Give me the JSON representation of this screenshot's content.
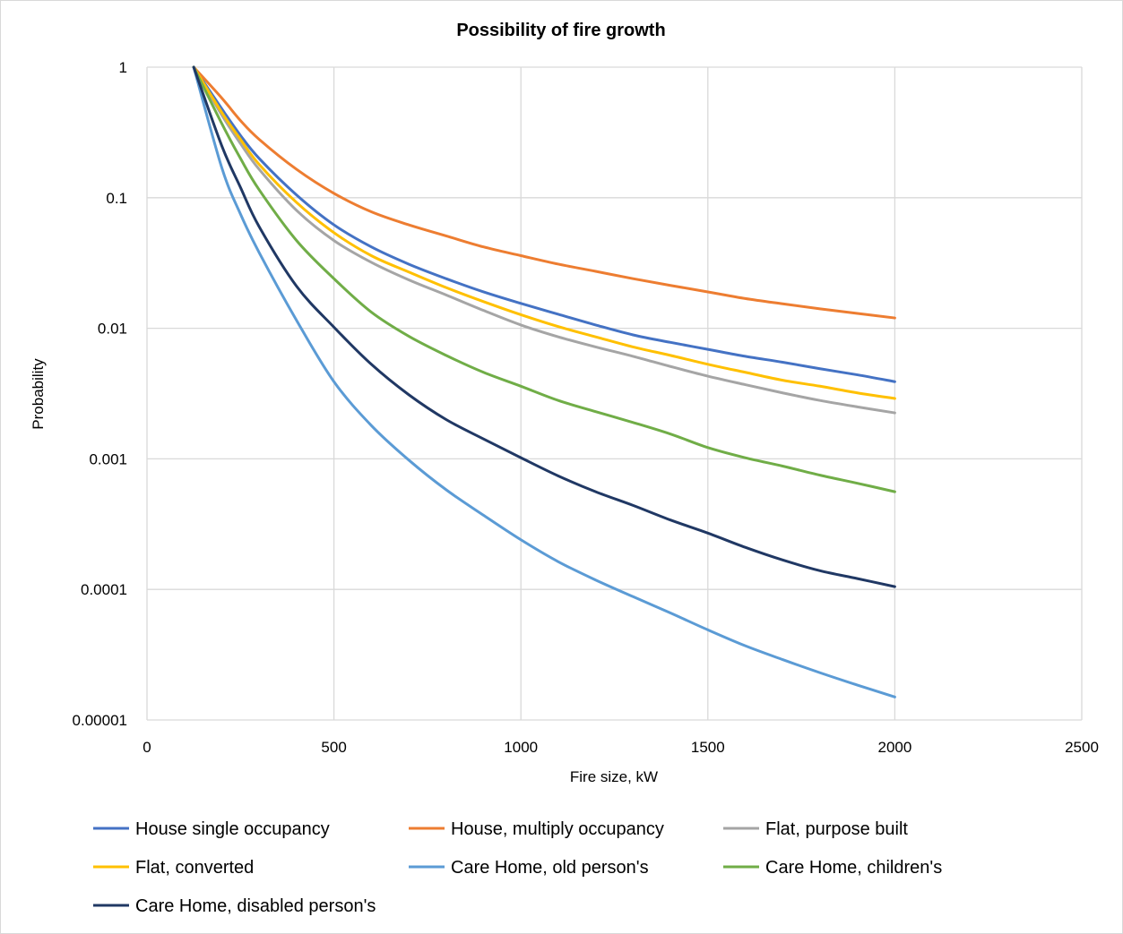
{
  "chart_data": {
    "type": "line",
    "title": "Possibility of fire growth",
    "xlabel": "Fire size, kW",
    "ylabel": "Probability",
    "xlim": [
      0,
      2500
    ],
    "ylim": [
      1e-05,
      1
    ],
    "yscale": "log",
    "grid": true,
    "legend_position": "bottom",
    "x_ticks": [
      0,
      500,
      1000,
      1500,
      2000,
      2500
    ],
    "x_tick_labels": [
      "0",
      "500",
      "1000",
      "1500",
      "2000",
      "2500"
    ],
    "y_ticks": [
      1,
      0.1,
      0.01,
      0.001,
      0.0001,
      1e-05
    ],
    "y_tick_labels": [
      "1",
      "0.1",
      "0.01",
      "0.001",
      "0.0001",
      "0.00001"
    ],
    "x": [
      125,
      200,
      250,
      300,
      400,
      500,
      600,
      700,
      800,
      900,
      1000,
      1100,
      1200,
      1300,
      1400,
      1500,
      1600,
      1700,
      1800,
      1900,
      2000
    ],
    "series": [
      {
        "name": "House single occupancy",
        "color": "#4472C4",
        "values": [
          1,
          0.48,
          0.3,
          0.2,
          0.105,
          0.062,
          0.042,
          0.031,
          0.024,
          0.019,
          0.0155,
          0.0128,
          0.0106,
          0.0089,
          0.0078,
          0.0069,
          0.0061,
          0.0055,
          0.0049,
          0.0044,
          0.0039
        ]
      },
      {
        "name": "House, multiply occupancy",
        "color": "#ED7D31",
        "values": [
          1,
          0.58,
          0.39,
          0.28,
          0.165,
          0.108,
          0.078,
          0.062,
          0.051,
          0.042,
          0.036,
          0.031,
          0.0273,
          0.024,
          0.0213,
          0.019,
          0.0169,
          0.0154,
          0.0141,
          0.013,
          0.012
        ]
      },
      {
        "name": "Flat, purpose built",
        "color": "#A5A5A5",
        "values": [
          1,
          0.43,
          0.26,
          0.165,
          0.08,
          0.047,
          0.032,
          0.0235,
          0.018,
          0.0137,
          0.0106,
          0.0086,
          0.0072,
          0.0061,
          0.0051,
          0.0043,
          0.0037,
          0.0032,
          0.0028,
          0.0025,
          0.00225
        ]
      },
      {
        "name": "Flat, converted",
        "color": "#FFC000",
        "values": [
          1,
          0.45,
          0.28,
          0.18,
          0.092,
          0.054,
          0.036,
          0.027,
          0.0205,
          0.016,
          0.0127,
          0.0103,
          0.0086,
          0.0072,
          0.0062,
          0.0053,
          0.0046,
          0.004,
          0.0036,
          0.0032,
          0.0029
        ]
      },
      {
        "name": "Care Home, old person's",
        "color": "#5B9BD5",
        "values": [
          1,
          0.17,
          0.075,
          0.038,
          0.0115,
          0.0039,
          0.0018,
          0.00098,
          0.00058,
          0.00037,
          0.00024,
          0.000163,
          0.000118,
          8.8e-05,
          6.6e-05,
          4.9e-05,
          3.7e-05,
          2.9e-05,
          2.3e-05,
          1.85e-05,
          1.5e-05
        ]
      },
      {
        "name": "Care Home, children's",
        "color": "#70AD47",
        "values": [
          1,
          0.37,
          0.2,
          0.115,
          0.047,
          0.024,
          0.0133,
          0.0087,
          0.0062,
          0.0046,
          0.0036,
          0.0028,
          0.0023,
          0.0019,
          0.00155,
          0.00122,
          0.00102,
          0.00088,
          0.00075,
          0.00065,
          0.00056
        ]
      },
      {
        "name": "Care Home, disabled person's",
        "color": "#203864",
        "values": [
          1,
          0.25,
          0.12,
          0.06,
          0.021,
          0.0102,
          0.0053,
          0.0031,
          0.002,
          0.00142,
          0.00102,
          0.00074,
          0.00056,
          0.00044,
          0.00034,
          0.00027,
          0.00021,
          0.000168,
          0.000139,
          0.000121,
          0.000105
        ]
      }
    ]
  }
}
